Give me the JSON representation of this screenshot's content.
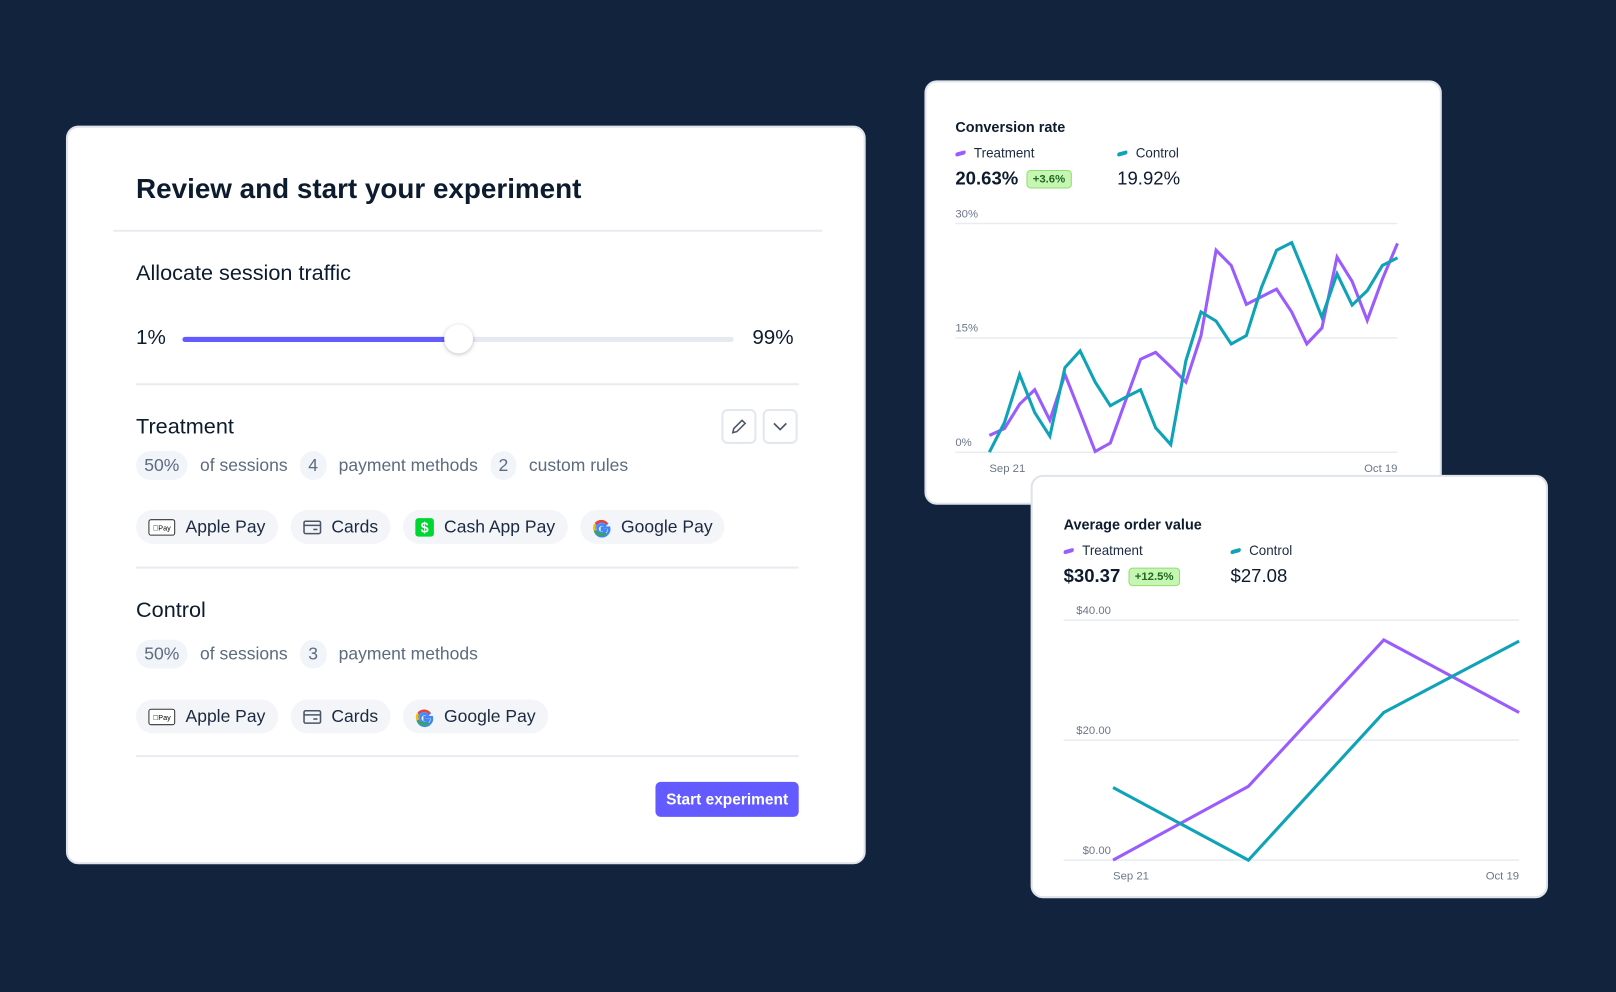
{
  "colors": {
    "background": "#12233d",
    "accent": "#635bff",
    "treatment": "#9b5cff",
    "control": "#0fa3b8",
    "badge": "#c7f5b3"
  },
  "experiment": {
    "title": "Review and start your experiment",
    "traffic": {
      "heading": "Allocate session traffic",
      "min_label": "1%",
      "max_label": "99%",
      "value_percent": 50
    },
    "treatment": {
      "heading": "Treatment",
      "sessions_value": "50%",
      "sessions_label": "of sessions",
      "methods_count": "4",
      "methods_label": "payment methods",
      "rules_count": "2",
      "rules_label": "custom rules",
      "edit_icon": "pencil-icon",
      "expand_icon": "chevron-down-icon",
      "methods": [
        {
          "label": "Apple Pay",
          "icon": "apple-pay-icon"
        },
        {
          "label": "Cards",
          "icon": "card-icon"
        },
        {
          "label": "Cash App Pay",
          "icon": "cash-app-icon"
        },
        {
          "label": "Google Pay",
          "icon": "google-icon"
        }
      ]
    },
    "control": {
      "heading": "Control",
      "sessions_value": "50%",
      "sessions_label": "of sessions",
      "methods_count": "3",
      "methods_label": "payment methods",
      "methods": [
        {
          "label": "Apple Pay",
          "icon": "apple-pay-icon"
        },
        {
          "label": "Cards",
          "icon": "card-icon"
        },
        {
          "label": "Google Pay",
          "icon": "google-icon"
        }
      ]
    },
    "start_button": "Start experiment"
  },
  "chart_data": [
    {
      "type": "line",
      "title": "Conversion rate",
      "ylim": [
        0,
        30
      ],
      "yticks": [
        "0%",
        "15%",
        "30%"
      ],
      "ytick_values": [
        0,
        15,
        30
      ],
      "xticks": [
        "Sep 21",
        "Oct 19"
      ],
      "grid": true,
      "summary": {
        "treatment_value": "20.63%",
        "treatment_delta": "+3.6%",
        "control_value": "19.92%"
      },
      "series": [
        {
          "name": "Treatment",
          "values": [
            2.2,
            3.1,
            6.3,
            8.2,
            4.2,
            10.2,
            5.2,
            0.1,
            1.2,
            6.7,
            12.2,
            13.1,
            11.2,
            9.2,
            15.3,
            26.5,
            24.5,
            19.4,
            20.4,
            21.4,
            18.4,
            14.2,
            16.3,
            25.6,
            22.4,
            17.3,
            22.7,
            27.4
          ]
        },
        {
          "name": "Control",
          "values": [
            0,
            3.9,
            10.2,
            5.2,
            2.1,
            11.1,
            13.3,
            9.2,
            6.1,
            7.2,
            8.2,
            3.2,
            1.0,
            12.0,
            18.4,
            17.2,
            14.2,
            15.3,
            21.6,
            26.5,
            27.5,
            22.7,
            17.7,
            23.4,
            19.3,
            21.2,
            24.5,
            25.5
          ]
        }
      ]
    },
    {
      "type": "line",
      "title": "Average order value",
      "ylim": [
        0,
        40
      ],
      "yticks": [
        "$0.00",
        "$20.00",
        "$40.00"
      ],
      "ytick_values": [
        0,
        20,
        40
      ],
      "xticks": [
        "Sep 21",
        "Oct 19"
      ],
      "grid": true,
      "summary": {
        "treatment_value": "$30.37",
        "treatment_delta": "+12.5%",
        "control_value": "$27.08"
      },
      "series": [
        {
          "name": "Treatment",
          "values": [
            0,
            12.3,
            36.7,
            24.6
          ]
        },
        {
          "name": "Control",
          "values": [
            12.1,
            0,
            24.6,
            36.5
          ]
        }
      ]
    }
  ]
}
